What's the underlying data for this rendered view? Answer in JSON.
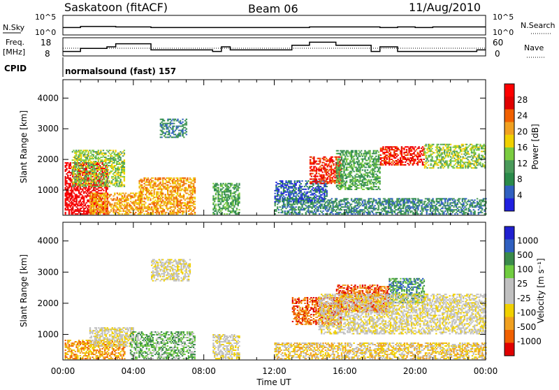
{
  "header": {
    "station": "Saskatoon (fitACF)",
    "beam": "Beam 06",
    "date": "11/Aug/2010"
  },
  "top_panels": {
    "nsky_label": "N.Sky",
    "nsky_ticks": [
      "10^5",
      "10^0"
    ],
    "nsearch_label": "N.Search",
    "nsearch_ticks": [
      "10^5",
      "10^0"
    ],
    "freq_label": [
      "Freq.",
      "[MHz]"
    ],
    "freq_ticks": [
      "18",
      "8"
    ],
    "nave_label": "Nave",
    "nave_ticks": [
      "60",
      "0"
    ],
    "cpid_label": "CPID",
    "cpid_value": "normalsound (fast) 157"
  },
  "colors": {
    "power_scale": [
      "#2020e0",
      "#3060c0",
      "#2a8a4a",
      "#4a9a5a",
      "#7acc40",
      "#f0d000",
      "#f0a020",
      "#f06000",
      "#e00000",
      "#ff0000"
    ],
    "velocity_scale": [
      "#e00000",
      "#f06000",
      "#f0a020",
      "#f0d000",
      "#c0c0c0",
      "#c0c0c0",
      "#70cc40",
      "#3a8a4a",
      "#3060c0",
      "#2020d0"
    ]
  },
  "chart_data": [
    {
      "type": "line",
      "title": "N.Sky / N.Search",
      "x_range": [
        "00:00",
        "00:00"
      ],
      "yscale": "log",
      "ylim": [
        "10^0",
        "10^5"
      ],
      "series": [
        {
          "name": "N.Sky",
          "hours": [
            0,
            1,
            2,
            3,
            4,
            5,
            6,
            7,
            8,
            9,
            10,
            11,
            12,
            13,
            14,
            15,
            16,
            17,
            18,
            19,
            20,
            21,
            22,
            23,
            24
          ],
          "values": [
            2,
            4,
            4,
            3,
            3,
            2,
            2,
            2,
            2,
            2,
            2,
            2,
            2,
            2,
            3,
            3,
            3,
            3,
            2,
            3,
            2,
            3,
            3,
            3,
            3
          ]
        }
      ]
    },
    {
      "type": "line",
      "title": "Freq. / Nave",
      "xlabel": "",
      "ylim_left": [
        8,
        18
      ],
      "ylim_right": [
        0,
        60
      ],
      "series": [
        {
          "name": "Freq.",
          "hours": [
            0,
            0.5,
            1,
            1.5,
            2,
            2.5,
            3,
            3.5,
            4,
            4.5,
            5,
            5.5,
            6,
            6.5,
            7,
            7.5,
            8,
            8.5,
            9,
            9.5,
            10,
            10.5,
            11,
            11.5,
            12,
            12.5,
            13,
            13.5,
            14,
            14.5,
            15,
            15.5,
            16,
            16.5,
            17,
            17.5,
            18,
            18.5,
            19,
            19.5,
            20,
            20.5,
            21,
            21.5,
            22,
            22.5,
            23,
            23.5,
            24
          ],
          "values": [
            10,
            10,
            12,
            12,
            12,
            13,
            15,
            15,
            15,
            15,
            11,
            11,
            11,
            11,
            11,
            11,
            11,
            10,
            13,
            11,
            11,
            11,
            11,
            11,
            11,
            11,
            14,
            14,
            16,
            16,
            16,
            14,
            14,
            14,
            14,
            10,
            13,
            13,
            10,
            10,
            10,
            10,
            10,
            10,
            10,
            10,
            10,
            11,
            11
          ]
        }
      ]
    },
    {
      "type": "heatmap",
      "title": "",
      "xlabel": "",
      "ylabel": "Slant Range [km]",
      "x_ticks": [
        "00:00",
        "04:00",
        "08:00",
        "12:00",
        "16:00",
        "20:00",
        "00:00"
      ],
      "y_ticks": [
        "1000",
        "2000",
        "3000",
        "4000"
      ],
      "ylim": [
        180,
        4600
      ],
      "colorbar_label": "Power [dB]",
      "colorbar_ticks": [
        "4",
        "8",
        "12",
        "16",
        "20",
        "24",
        "28"
      ],
      "regions": [
        {
          "t0": 0.1,
          "t1": 2.5,
          "r0": 200,
          "r1": 1900,
          "level": 9
        },
        {
          "t0": 0.5,
          "t1": 3.5,
          "r0": 1100,
          "r1": 2300,
          "level": 4
        },
        {
          "t0": 1.5,
          "t1": 4.5,
          "r0": 200,
          "r1": 900,
          "level": 6
        },
        {
          "t0": 4.3,
          "t1": 7.5,
          "r0": 200,
          "r1": 1400,
          "level": 6
        },
        {
          "t0": 5.5,
          "t1": 7.0,
          "r0": 2700,
          "r1": 3300,
          "level": 2
        },
        {
          "t0": 8.5,
          "t1": 10,
          "r0": 200,
          "r1": 1200,
          "level": 3
        },
        {
          "t0": 12,
          "t1": 24,
          "r0": 200,
          "r1": 700,
          "level": 2
        },
        {
          "t0": 12,
          "t1": 15,
          "r0": 600,
          "r1": 1300,
          "level": 1
        },
        {
          "t0": 14,
          "t1": 15.8,
          "r0": 1200,
          "r1": 2100,
          "level": 8
        },
        {
          "t0": 15.5,
          "t1": 18,
          "r0": 1000,
          "r1": 2300,
          "level": 3
        },
        {
          "t0": 18,
          "t1": 20.5,
          "r0": 1800,
          "r1": 2400,
          "level": 8
        },
        {
          "t0": 20.5,
          "t1": 24,
          "r0": 1700,
          "r1": 2500,
          "level": 4
        }
      ]
    },
    {
      "type": "heatmap",
      "title": "",
      "xlabel": "Time UT",
      "ylabel": "Slant Range [km]",
      "x_ticks": [
        "00:00",
        "04:00",
        "08:00",
        "12:00",
        "16:00",
        "20:00",
        "00:00"
      ],
      "y_ticks": [
        "1000",
        "2000",
        "3000",
        "4000"
      ],
      "ylim": [
        180,
        4600
      ],
      "colorbar_label": "Velocity [m s⁻¹]",
      "colorbar_ticks": [
        "1000",
        "500",
        "100",
        "25",
        "-25",
        "-100",
        "-500",
        "-1000"
      ],
      "regions": [
        {
          "t0": 0.1,
          "t1": 3.5,
          "r0": 200,
          "r1": 800,
          "level": 2
        },
        {
          "t0": 1.5,
          "t1": 4.0,
          "r0": 600,
          "r1": 1200,
          "level": 4
        },
        {
          "t0": 3.8,
          "t1": 7.5,
          "r0": 200,
          "r1": 1100,
          "level": 6
        },
        {
          "t0": 5.0,
          "t1": 7.2,
          "r0": 2700,
          "r1": 3400,
          "level": 4
        },
        {
          "t0": 8.5,
          "t1": 10,
          "r0": 200,
          "r1": 1000,
          "level": 4
        },
        {
          "t0": 12,
          "t1": 24,
          "r0": 200,
          "r1": 700,
          "level": 3
        },
        {
          "t0": 13,
          "t1": 15.8,
          "r0": 1300,
          "r1": 2200,
          "level": 1
        },
        {
          "t0": 15.5,
          "t1": 18.5,
          "r0": 1700,
          "r1": 2600,
          "level": 1
        },
        {
          "t0": 18.5,
          "t1": 20.5,
          "r0": 2000,
          "r1": 2800,
          "level": 7
        },
        {
          "t0": 14.5,
          "t1": 24,
          "r0": 1000,
          "r1": 2300,
          "level": 4
        }
      ]
    }
  ]
}
